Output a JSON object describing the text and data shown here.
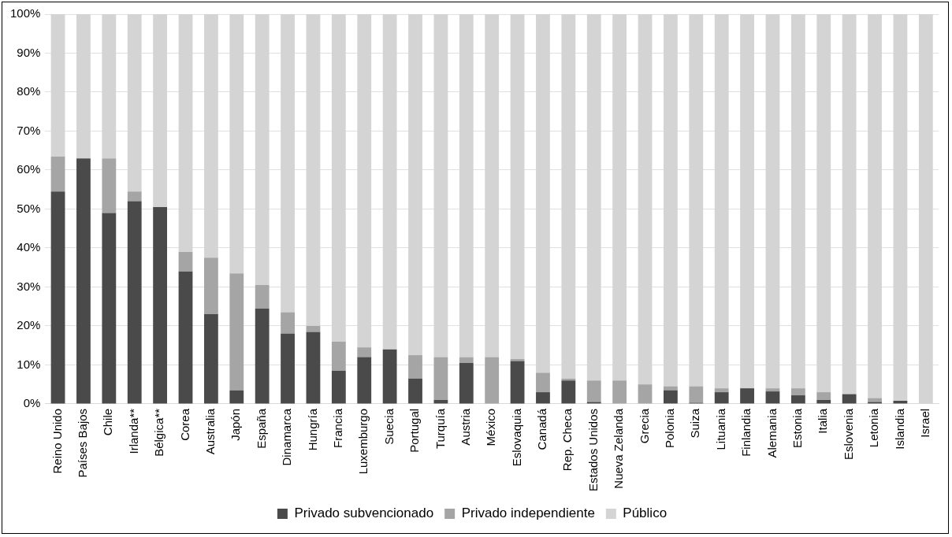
{
  "chart_data": {
    "type": "bar",
    "stacked": true,
    "categories": [
      "Reino Unido",
      "Países Bajos",
      "Chile",
      "Irlanda**",
      "Bélgica**",
      "Corea",
      "Australia",
      "Japón",
      "España",
      "Dinamarca",
      "Hungría",
      "Francia",
      "Luxemburgo",
      "Suecia",
      "Portugal",
      "Turquía",
      "Austria",
      "México",
      "Eslovaquia",
      "Canadá",
      "Rep. Checa",
      "Estados Unidos",
      "Nueva Zelanda",
      "Grecia",
      "Polonia",
      "Suiza",
      "Lituania",
      "Finlandia",
      "Alemania",
      "Estonia",
      "Italia",
      "Eslovenia",
      "Letonia",
      "Islandia",
      "Israel"
    ],
    "series": [
      {
        "name": "Privado subvencionado",
        "color": "#4a4a4a",
        "values": [
          54.5,
          63,
          49,
          52,
          50.5,
          34,
          23,
          3.5,
          24.5,
          18,
          18.5,
          8.5,
          12,
          14,
          6.5,
          1,
          10.5,
          0,
          11,
          3,
          6,
          0.5,
          0,
          0,
          3.5,
          0.3,
          3,
          4,
          3.2,
          2.2,
          1,
          2.5,
          0.5,
          0.8,
          0
        ]
      },
      {
        "name": "Privado independiente",
        "color": "#a5a5a5",
        "values": [
          9,
          0,
          14,
          2.5,
          0,
          5,
          14.5,
          30,
          6,
          5.5,
          1.5,
          7.5,
          2.5,
          0,
          6,
          11,
          1.5,
          12,
          0.5,
          5,
          0.5,
          5.5,
          6,
          5,
          1,
          4.2,
          1,
          0,
          0.8,
          1.8,
          2,
          0,
          1,
          0,
          0
        ]
      },
      {
        "name": "Público",
        "color": "#d4d4d4",
        "values": [
          36.5,
          37,
          37,
          45.5,
          49.5,
          61,
          62.5,
          66.5,
          69.5,
          76.5,
          80,
          84,
          85.5,
          86,
          87.5,
          88,
          88,
          88,
          88.5,
          92,
          93.5,
          94,
          94,
          95,
          95.5,
          95.5,
          96,
          96,
          96,
          96,
          97,
          97.5,
          98.5,
          99.2,
          100
        ]
      }
    ],
    "ylim": [
      0,
      100
    ],
    "yticks": [
      {
        "value": 0,
        "label": "0%"
      },
      {
        "value": 10,
        "label": "10%"
      },
      {
        "value": 20,
        "label": "20%"
      },
      {
        "value": 30,
        "label": "30%"
      },
      {
        "value": 40,
        "label": "40%"
      },
      {
        "value": 50,
        "label": "50%"
      },
      {
        "value": 60,
        "label": "60%"
      },
      {
        "value": 70,
        "label": "70%"
      },
      {
        "value": 80,
        "label": "80%"
      },
      {
        "value": 90,
        "label": "90%"
      },
      {
        "value": 100,
        "label": "100%"
      }
    ],
    "grid": "y",
    "legend": "bottom"
  }
}
